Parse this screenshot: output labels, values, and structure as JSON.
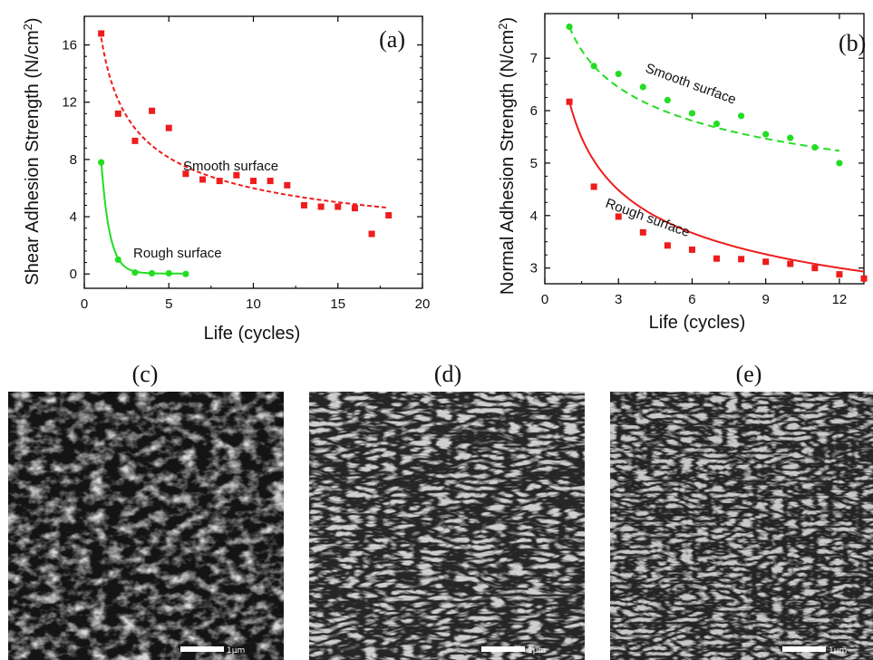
{
  "colors": {
    "red": "#ee1c1c",
    "green": "#22dd22",
    "axis": "#000000"
  },
  "chart_data": [
    {
      "id": "a",
      "type": "scatter",
      "panel_label": "(a)",
      "xlabel": "Life (cycles)",
      "ylabel": "Shear Adhesion Strength (N/cm",
      "ylabel_sup": "2",
      "ylabel_close": ")",
      "xlim": [
        0,
        20
      ],
      "ylim": [
        -1,
        18
      ],
      "xticks": [
        0,
        5,
        10,
        15,
        20
      ],
      "yticks": [
        0,
        4,
        8,
        12,
        16
      ],
      "series": [
        {
          "label": "Smooth surface",
          "color": "#ee1c1c",
          "marker": "square",
          "points": [
            [
              1,
              16.8
            ],
            [
              2,
              11.2
            ],
            [
              3,
              9.3
            ],
            [
              4,
              11.4
            ],
            [
              5,
              10.2
            ],
            [
              6,
              7.0
            ],
            [
              7,
              6.6
            ],
            [
              8,
              6.5
            ],
            [
              9,
              6.9
            ],
            [
              10,
              6.5
            ],
            [
              11,
              6.5
            ],
            [
              12,
              6.2
            ],
            [
              13,
              4.8
            ],
            [
              14,
              4.7
            ],
            [
              15,
              4.7
            ],
            [
              16,
              4.6
            ],
            [
              17,
              2.8
            ],
            [
              18,
              4.1
            ]
          ],
          "fit": {
            "model": "power",
            "a": 16.5,
            "b": 0.44,
            "x_range": [
              1,
              18
            ],
            "style": "dash"
          }
        },
        {
          "label": "Rough surface",
          "color": "#22dd22",
          "marker": "circle",
          "points": [
            [
              1,
              7.8
            ],
            [
              2,
              1.0
            ],
            [
              3,
              0.1
            ],
            [
              4,
              0.05
            ],
            [
              5,
              0.05
            ],
            [
              6,
              0.0
            ]
          ],
          "fit": {
            "model": "exp",
            "a": 58,
            "k": 2.0,
            "c": 0.03,
            "x_range": [
              1,
              6
            ],
            "style": "solid"
          }
        }
      ]
    },
    {
      "id": "b",
      "type": "scatter",
      "panel_label": "(b)",
      "xlabel": "Life (cycles)",
      "ylabel": "Normal Adhesion Strength (N/cm",
      "ylabel_sup": "2",
      "ylabel_close": ")",
      "xlim": [
        0,
        13
      ],
      "ylim": [
        2.7,
        7.85
      ],
      "xticks": [
        0,
        3,
        6,
        9,
        12
      ],
      "yticks": [
        3,
        4,
        5,
        6,
        7
      ],
      "series": [
        {
          "label": "Smooth surface",
          "color": "#22dd22",
          "marker": "circle",
          "points": [
            [
              1,
              7.6
            ],
            [
              2,
              6.85
            ],
            [
              3,
              6.7
            ],
            [
              4,
              6.45
            ],
            [
              5,
              6.2
            ],
            [
              6,
              5.95
            ],
            [
              7,
              5.75
            ],
            [
              8,
              5.9
            ],
            [
              9,
              5.55
            ],
            [
              10,
              5.48
            ],
            [
              11,
              5.3
            ],
            [
              12,
              5.0
            ]
          ],
          "fit": {
            "model": "power",
            "a": 7.6,
            "b": 0.15,
            "x_range": [
              1,
              12
            ],
            "style": "dash"
          }
        },
        {
          "label": "Rough surface",
          "color": "#ee1c1c",
          "marker": "square",
          "points": [
            [
              1,
              6.17
            ],
            [
              2,
              4.55
            ],
            [
              3,
              3.98
            ],
            [
              4,
              3.68
            ],
            [
              5,
              3.43
            ],
            [
              6,
              3.35
            ],
            [
              7,
              3.18
            ],
            [
              8,
              3.17
            ],
            [
              9,
              3.12
            ],
            [
              10,
              3.08
            ],
            [
              11,
              3.0
            ],
            [
              12,
              2.88
            ],
            [
              13,
              2.8
            ]
          ],
          "fit": {
            "model": "power",
            "a": 6.17,
            "b": 0.29,
            "x_range": [
              1,
              13
            ],
            "style": "solid"
          }
        }
      ]
    }
  ],
  "sem_images": [
    {
      "id": "c",
      "label": "(c)",
      "scale_text": "1μm"
    },
    {
      "id": "d",
      "label": "(d)",
      "scale_text": "1μm"
    },
    {
      "id": "e",
      "label": "(e)",
      "scale_text": "1μm"
    }
  ]
}
